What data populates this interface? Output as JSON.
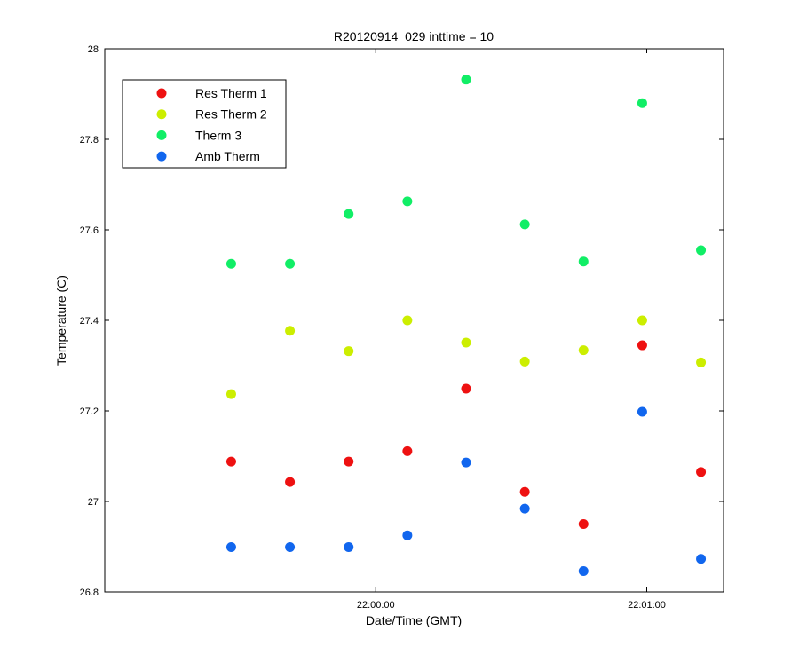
{
  "chart_data": {
    "type": "scatter",
    "title": "R20120914_029 inttime = 10",
    "xlabel": "Date/Time (GMT)",
    "ylabel": "Temperature (C)",
    "xlim": [
      "21:59:00",
      "22:01:17"
    ],
    "ylim": [
      26.8,
      28
    ],
    "x_ticks": [
      "22:00:00",
      "22:01:00"
    ],
    "y_ticks": [
      "26.8",
      "27",
      "27.2",
      "27.4",
      "27.6",
      "27.8",
      "28"
    ],
    "grid": false,
    "legend_position": "top-left",
    "x": [
      "21:59:28",
      "21:59:41",
      "21:59:54",
      "22:00:07",
      "22:00:20",
      "22:00:33",
      "22:00:46",
      "22:00:59",
      "22:01:12"
    ],
    "series": [
      {
        "name": "Res Therm 1",
        "color": "#ee1111",
        "values": [
          27.088,
          27.043,
          27.088,
          27.111,
          27.249,
          27.021,
          26.95,
          27.345,
          27.065
        ]
      },
      {
        "name": "Res Therm 2",
        "color": "#ccee00",
        "values": [
          27.237,
          27.377,
          27.332,
          27.4,
          27.351,
          27.309,
          27.334,
          27.4,
          27.307
        ]
      },
      {
        "name": "Therm 3",
        "color": "#11ee66",
        "values": [
          27.525,
          27.525,
          27.635,
          27.663,
          27.932,
          27.612,
          27.53,
          27.88,
          27.555
        ]
      },
      {
        "name": "Amb Therm",
        "color": "#1166ee",
        "values": [
          26.899,
          26.899,
          26.899,
          26.925,
          27.086,
          26.984,
          26.846,
          27.198,
          26.873
        ]
      }
    ]
  }
}
